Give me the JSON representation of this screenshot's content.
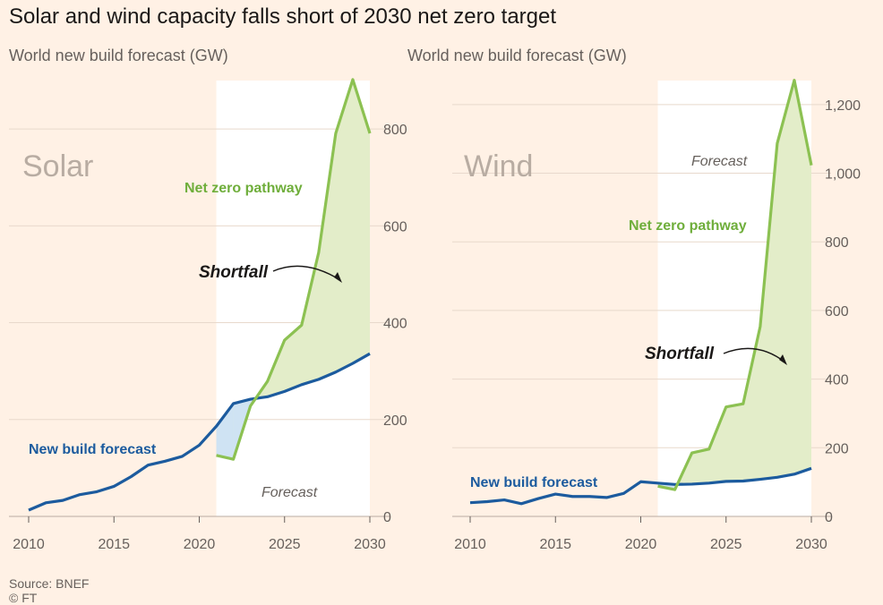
{
  "title": "Solar and wind capacity falls short of 2030 net zero target",
  "subtitle_left": "World new build forecast (GW)",
  "subtitle_right": "World new build forecast (GW)",
  "source": "Source: BNEF",
  "credit": "© FT",
  "colors": {
    "forecast_line": "#1c5b9e",
    "net_zero_line": "#8cc152",
    "shortfall_fill": "#e3edc9",
    "gap_fill": "#cfe3f3",
    "forecast_band": "#ffffff",
    "grid": "#e8d9cc"
  },
  "chart_data": [
    {
      "type": "line",
      "panel": "Solar",
      "title": "Solar",
      "ylim": [
        0,
        900
      ],
      "yticks": [
        0,
        200,
        400,
        600,
        800
      ],
      "ytick_labels": [
        "0",
        "200",
        "400",
        "600",
        "800"
      ],
      "xticks": [
        2010,
        2015,
        2020,
        2025,
        2030
      ],
      "xtick_labels": [
        "2010",
        "2015",
        "2020",
        "2025",
        "2030"
      ],
      "forecast_start": 2021,
      "forecast_label": "Forecast",
      "shortfall_label": "Shortfall",
      "series": [
        {
          "name": "New build forecast",
          "x": [
            2010,
            2011,
            2012,
            2013,
            2014,
            2015,
            2016,
            2017,
            2018,
            2019,
            2020,
            2021,
            2022,
            2023,
            2024,
            2025,
            2026,
            2027,
            2028,
            2029,
            2030
          ],
          "values": [
            13,
            28,
            33,
            45,
            51,
            62,
            82,
            106,
            114,
            124,
            147,
            186,
            233,
            242,
            247,
            258,
            272,
            283,
            298,
            316,
            336
          ]
        },
        {
          "name": "Net zero pathway",
          "x": [
            2021,
            2022,
            2023,
            2024,
            2025,
            2026,
            2027,
            2028,
            2029,
            2030
          ],
          "values": [
            126,
            118,
            228,
            279,
            364,
            395,
            545,
            791,
            902,
            791
          ]
        }
      ]
    },
    {
      "type": "line",
      "panel": "Wind",
      "title": "Wind",
      "ylim": [
        0,
        1270
      ],
      "yticks": [
        0,
        200,
        400,
        600,
        800,
        1000,
        1200
      ],
      "ytick_labels": [
        "0",
        "200",
        "400",
        "600",
        "800",
        "1,000",
        "1,200"
      ],
      "xticks": [
        2010,
        2015,
        2020,
        2025,
        2030
      ],
      "xtick_labels": [
        "2010",
        "2015",
        "2020",
        "2025",
        "2030"
      ],
      "forecast_start": 2021,
      "forecast_label": "Forecast",
      "shortfall_label": "Shortfall",
      "series": [
        {
          "name": "New build forecast",
          "x": [
            2010,
            2011,
            2012,
            2013,
            2014,
            2015,
            2016,
            2017,
            2018,
            2019,
            2020,
            2021,
            2022,
            2023,
            2024,
            2025,
            2026,
            2027,
            2028,
            2029,
            2030
          ],
          "values": [
            40,
            43,
            48,
            37,
            52,
            65,
            58,
            58,
            55,
            67,
            101,
            97,
            93,
            94,
            97,
            102,
            103,
            108,
            114,
            123,
            140
          ]
        },
        {
          "name": "Net zero pathway",
          "x": [
            2021,
            2022,
            2023,
            2024,
            2025,
            2026,
            2027,
            2028,
            2029,
            2030
          ],
          "values": [
            88,
            78,
            185,
            196,
            319,
            328,
            553,
            1087,
            1271,
            1023
          ]
        }
      ]
    }
  ]
}
